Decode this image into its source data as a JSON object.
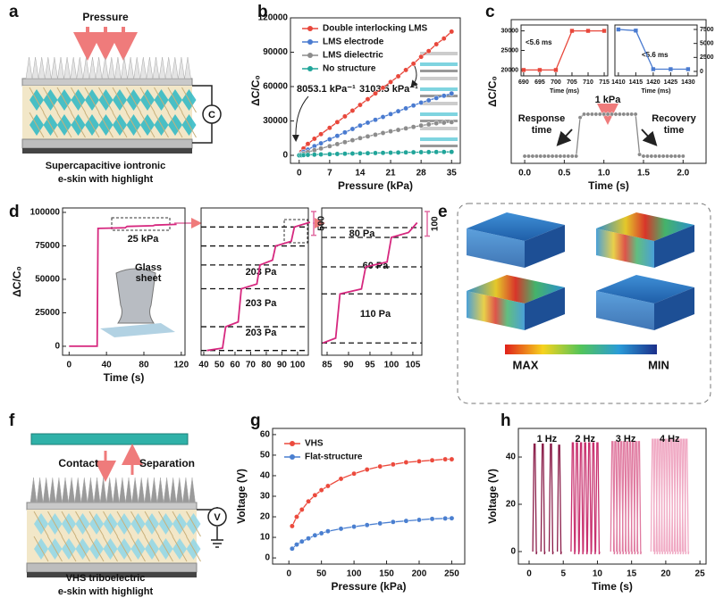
{
  "panel_labels": [
    "a",
    "b",
    "c",
    "d",
    "e",
    "f",
    "g",
    "h"
  ],
  "panel_a": {
    "pressure": "Pressure",
    "caption": [
      "Supercapacitive iontronic",
      "e-skin with highlight"
    ],
    "symbol": "C"
  },
  "panel_e": {
    "max": "MAX",
    "min": "MIN"
  },
  "panel_f": {
    "contact": "Contact",
    "separation": "Separation",
    "caption": [
      "VHS triboelectric",
      "e-skin with highlight"
    ],
    "symbol": "V"
  },
  "chart_data": [
    {
      "type": "line",
      "xlabel": "Pressure (kPa)",
      "ylabel": "ΔC/C₀",
      "legend": "upper left",
      "marker": "circle",
      "xlim": [
        -2,
        37
      ],
      "xticks": [
        0,
        7,
        14,
        21,
        28,
        35
      ],
      "ylim": [
        -7000,
        120000
      ],
      "yticks": [
        0,
        30000,
        60000,
        90000,
        120000
      ],
      "x": [
        0,
        0.5,
        1,
        2,
        3.5,
        5,
        7,
        8.75,
        10.5,
        12.25,
        14,
        15.75,
        17.5,
        19.25,
        21,
        22.75,
        24.5,
        26.25,
        28,
        29.75,
        31.5,
        33.25,
        35
      ],
      "annotations": [
        "8053.1 kPa⁻¹",
        "3103.5 kPa⁻¹"
      ],
      "series": [
        {
          "name": "Double interlocking LMS",
          "color": "#e8473b",
          "values": [
            0,
            3000,
            6000,
            10000,
            14500,
            18500,
            24000,
            29000,
            34000,
            39000,
            44000,
            49000,
            54000,
            59000,
            64000,
            69000,
            74500,
            80000,
            86000,
            91000,
            97000,
            102000,
            108000
          ]
        },
        {
          "name": "LMS electrode",
          "color": "#4a7bd0",
          "values": [
            0,
            1500,
            3000,
            5000,
            8000,
            10500,
            14000,
            17000,
            20000,
            23000,
            26000,
            28500,
            31000,
            33500,
            36000,
            38500,
            41000,
            43500,
            46000,
            48000,
            50000,
            52000,
            54000
          ]
        },
        {
          "name": "LMS dielectric",
          "color": "#8c8c8c",
          "values": [
            0,
            800,
            1500,
            2800,
            4500,
            6000,
            8000,
            9800,
            11500,
            13200,
            15000,
            16500,
            18000,
            19500,
            21000,
            22200,
            23500,
            24800,
            26000,
            27000,
            28000,
            28500,
            29000
          ]
        },
        {
          "name": "No structure",
          "color": "#21a59a",
          "values": [
            0,
            100,
            200,
            400,
            600,
            800,
            1000,
            1200,
            1400,
            1550,
            1700,
            1850,
            2000,
            2150,
            2300,
            2450,
            2550,
            2650,
            2750,
            2850,
            2900,
            2950,
            3000
          ]
        }
      ]
    },
    {
      "type": "line",
      "xlabel": "Time (s)",
      "ylabel": "ΔC/C₀",
      "marker": "circle",
      "xlim": [
        -0.17,
        2.29
      ],
      "xticks": [
        {
          "value": 0,
          "label": "0.0"
        },
        {
          "value": 0.5,
          "label": "0.5"
        },
        {
          "value": 1,
          "label": "1.0"
        },
        {
          "value": 1.5,
          "label": "1.5"
        },
        {
          "value": 2,
          "label": "2.0"
        }
      ],
      "ylim": [
        -1280,
        24400
      ],
      "x": [
        0,
        0.05,
        0.1,
        0.15,
        0.2,
        0.25,
        0.3,
        0.35,
        0.4,
        0.45,
        0.5,
        0.55,
        0.6,
        0.65,
        0.7,
        0.75,
        0.8,
        0.85,
        0.9,
        0.95,
        1.0,
        1.05,
        1.1,
        1.15,
        1.2,
        1.25,
        1.3,
        1.35,
        1.4,
        1.45,
        1.5,
        1.55,
        1.6,
        1.65,
        1.7,
        1.75,
        1.8,
        1.85,
        1.9,
        1.95,
        2.0
      ],
      "annotations": [
        "1 kPa",
        "Response",
        "time",
        "Recovery",
        "time"
      ],
      "series": [
        {
          "color": "#8a8a8a",
          "values": [
            0,
            0,
            0,
            0,
            0,
            0,
            0,
            0,
            0,
            0,
            0,
            0,
            0,
            0,
            6900,
            7500,
            7500,
            7500,
            7500,
            7500,
            7500,
            7500,
            7500,
            7500,
            7500,
            7500,
            7500,
            7500,
            7500,
            300,
            0,
            0,
            0,
            0,
            0,
            0,
            0,
            0,
            0,
            0,
            0
          ]
        }
      ]
    },
    {
      "type": "line",
      "xlabel": "Time (ms)",
      "marker": "square",
      "xlim": [
        689.2,
        716.1
      ],
      "xticks": [
        690,
        695,
        700,
        705,
        710,
        715
      ],
      "ylim": [
        18500,
        31500
      ],
      "yticks": [
        20000,
        25000,
        30000
      ],
      "x": [
        690,
        695,
        700,
        705,
        710,
        715
      ],
      "annotations": [
        "<5.6 ms"
      ],
      "series": [
        {
          "color": "#e8473b",
          "values": [
            20000,
            20000,
            20000,
            30000,
            30000,
            30000
          ]
        }
      ]
    },
    {
      "type": "line",
      "xlabel": "Time (ms)",
      "marker": "square",
      "yaxis": "right",
      "xlim": [
        1409,
        1432.6
      ],
      "xticks": [
        1410,
        1415,
        1420,
        1425,
        1430
      ],
      "ylim": [
        -800,
        8300
      ],
      "yticks": [
        0,
        2500,
        5000,
        7500
      ],
      "x": [
        1410,
        1415,
        1420,
        1425,
        1430
      ],
      "annotations": [
        "<5.6 ms"
      ],
      "series": [
        {
          "color": "#4a7bd0",
          "values": [
            7500,
            7300,
            400,
            400,
            400
          ]
        }
      ]
    },
    {
      "type": "line",
      "xlabel": "Time (s)",
      "ylabel": "ΔC/C₀",
      "xlim": [
        -7,
        124
      ],
      "xticks": [
        0,
        40,
        80,
        120
      ],
      "ylim": [
        -6700,
        103300
      ],
      "yticks": [
        0,
        25000,
        50000,
        75000,
        100000
      ],
      "x": [
        0,
        30,
        31,
        60,
        62,
        90,
        92,
        115
      ],
      "annotations": [
        "25 kPa",
        "Glass",
        "sheet"
      ],
      "series": [
        {
          "color": "#d6287f",
          "values": [
            0,
            0,
            88000,
            88500,
            89500,
            90000,
            90500,
            91000
          ]
        }
      ]
    },
    {
      "type": "line",
      "xlim": [
        38.3,
        106.9
      ],
      "xticks": [
        40,
        50,
        60,
        70,
        80,
        90,
        100
      ],
      "ylim": [
        87900,
        91000
      ],
      "scale_bar": 500,
      "x": [
        42,
        52,
        54,
        62,
        64,
        74,
        76,
        84,
        86,
        96,
        98,
        108
      ],
      "annotations": [
        "203 Pa",
        "203 Pa",
        "203 Pa"
      ],
      "levels": true,
      "series": [
        {
          "color": "#d6287f",
          "values": [
            88000,
            88050,
            88500,
            88600,
            89300,
            89400,
            89800,
            89900,
            90200,
            90300,
            90600,
            90700
          ]
        }
      ]
    },
    {
      "type": "line",
      "xlim": [
        83.75,
        107.1
      ],
      "xticks": [
        85,
        90,
        95,
        100,
        105
      ],
      "ylim": [
        90200,
        90800
      ],
      "scale_bar": 100,
      "x": [
        84,
        87,
        88,
        93,
        94,
        99,
        100,
        104,
        105,
        106
      ],
      "annotations": [
        "80 Pa",
        "60 Pa",
        "110 Pa"
      ],
      "levels": true,
      "series": [
        {
          "color": "#d6287f",
          "values": [
            90250,
            90270,
            90450,
            90470,
            90560,
            90580,
            90680,
            90700,
            90720,
            90740
          ]
        }
      ]
    },
    {
      "type": "line",
      "xlabel": "Pressure (kPa)",
      "ylabel": "Voltage (V)",
      "legend": "upper left",
      "marker": "circle",
      "xlim": [
        -25,
        270
      ],
      "xticks": [
        0,
        50,
        100,
        150,
        200,
        250
      ],
      "ylim": [
        -3,
        63
      ],
      "yticks": [
        0,
        10,
        20,
        30,
        40,
        50,
        60
      ],
      "x": [
        5,
        12,
        20,
        30,
        40,
        50,
        60,
        80,
        100,
        120,
        140,
        160,
        180,
        200,
        220,
        240,
        250
      ],
      "series": [
        {
          "name": "VHS",
          "color": "#ec4a3d",
          "values": [
            15.5,
            20,
            23.5,
            27.5,
            30.5,
            33,
            35,
            38.5,
            41,
            43,
            44.5,
            45.5,
            46.5,
            47,
            47.5,
            48,
            48
          ]
        },
        {
          "name": "Flat-structure",
          "color": "#4a7fd0",
          "values": [
            4.5,
            6.5,
            8,
            9.5,
            11,
            12,
            13,
            14.2,
            15.2,
            16,
            16.8,
            17.5,
            18,
            18.5,
            19,
            19.2,
            19.3
          ]
        }
      ]
    },
    {
      "type": "spike",
      "xlabel": "Time (s)",
      "ylabel": "Voltage (V)",
      "xlim": [
        -1.57,
        25.9
      ],
      "xticks": [
        0,
        5,
        10,
        15,
        20,
        25
      ],
      "ylim": [
        -5.3,
        52.1
      ],
      "yticks": [
        0,
        20,
        40
      ],
      "series": [
        {
          "name": "1 Hz",
          "color": "#8b1e4a",
          "x": [
            0.8,
            2.0,
            3.2,
            4.4
          ],
          "values": [
            45.5,
            45.5,
            45.5,
            45
          ]
        },
        {
          "name": "2 Hz",
          "color": "#c8306e",
          "x": [
            6.4,
            7.0,
            7.6,
            8.2,
            8.8,
            9.4,
            10.0
          ],
          "values": [
            46,
            46,
            46,
            46,
            46,
            46,
            46
          ]
        },
        {
          "name": "3 Hz",
          "color": "#e07aa0",
          "x": [
            12.2,
            12.63,
            13.06,
            13.49,
            13.92,
            14.35,
            14.78,
            15.21,
            15.64,
            16.07
          ],
          "values": [
            46.5,
            46.5,
            46.5,
            46.5,
            46.5,
            46.5,
            46.5,
            46.5,
            46.5,
            46.5
          ]
        },
        {
          "name": "4 Hz",
          "color": "#f0aac4",
          "x": [
            18.1,
            18.48,
            18.86,
            19.24,
            19.62,
            20.0,
            20.38,
            20.76,
            21.14,
            21.52,
            21.9,
            22.28,
            22.66,
            23.04
          ],
          "values": [
            47.5,
            47.5,
            47.5,
            47.5,
            47.5,
            47.5,
            47.5,
            47.5,
            47.5,
            47.5,
            47.5,
            47.5,
            47.5,
            47.5
          ]
        }
      ]
    }
  ]
}
